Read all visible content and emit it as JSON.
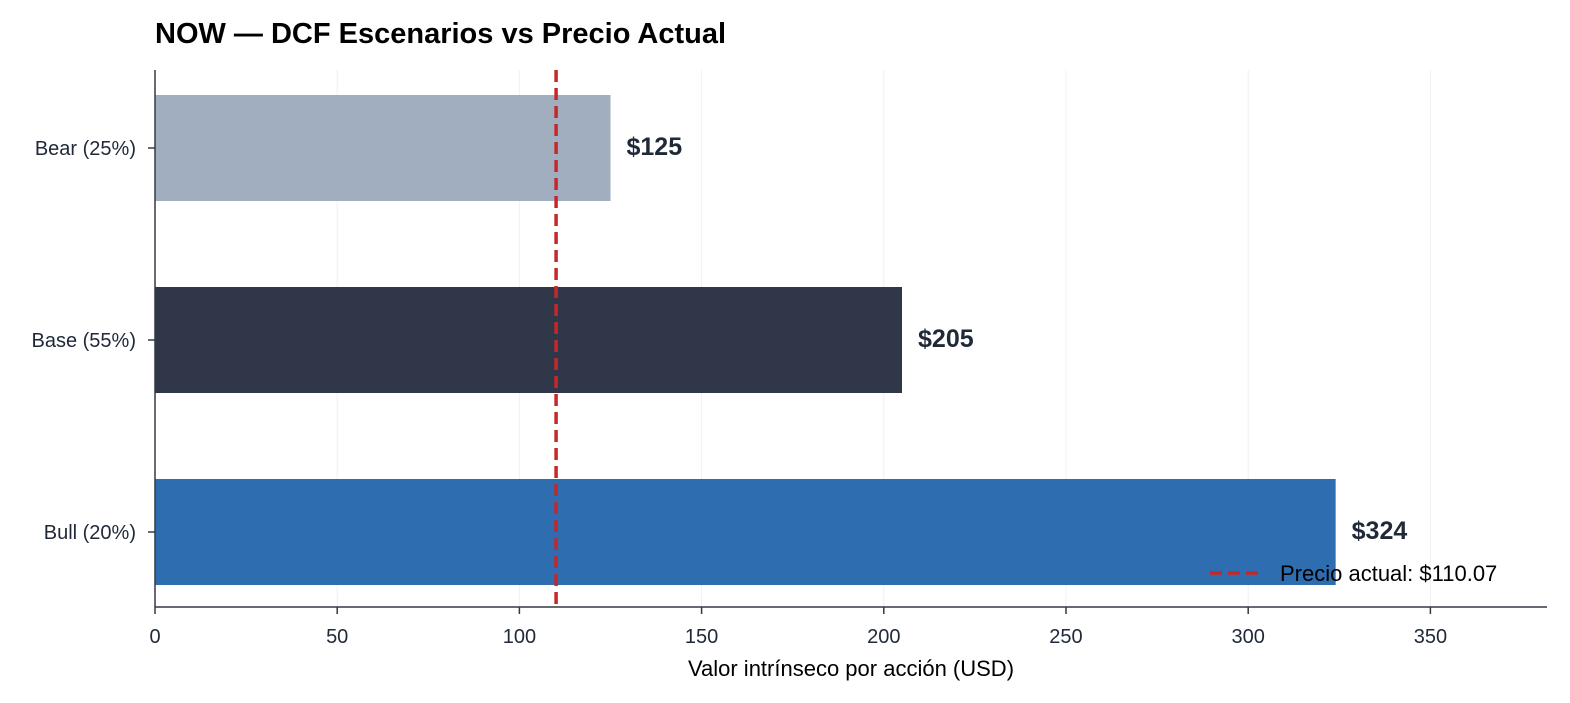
{
  "chart_data": {
    "type": "bar",
    "orientation": "horizontal",
    "title": "NOW — DCF Escenarios vs Precio Actual",
    "xlabel": "Valor intrínseco por acción (USD)",
    "ylabel": "",
    "xlim": [
      0,
      382
    ],
    "xticks": [
      0,
      50,
      100,
      150,
      200,
      250,
      300,
      350
    ],
    "grid": "vertical",
    "categories": [
      "Bear (25%)",
      "Base (55%)",
      "Bull (20%)"
    ],
    "values": [
      125,
      205,
      324
    ],
    "data_labels": [
      "$125",
      "$205",
      "$324"
    ],
    "colors": [
      "#a1aebf",
      "#2f3748",
      "#2d6db0"
    ],
    "reference_line": {
      "value": 110.07,
      "label": "Precio actual: $110.07",
      "color": "#c62828",
      "style": "dashed"
    },
    "legend_placement": "bottom-right"
  }
}
